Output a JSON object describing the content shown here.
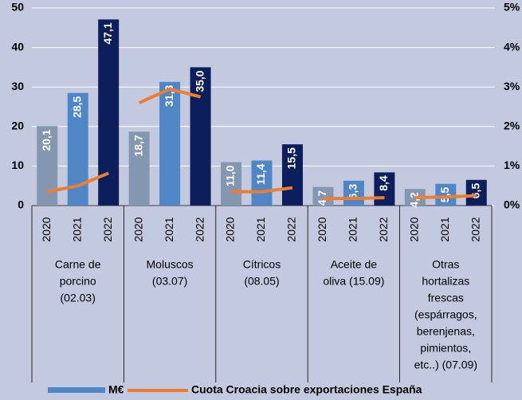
{
  "chart_data": {
    "type": "bar",
    "groups": [
      {
        "label": [
          "Carne de",
          "porcino",
          "(02.03)"
        ],
        "categories": [
          "2020",
          "2021",
          "2022"
        ]
      },
      {
        "label": [
          "Moluscos",
          "(03.07)"
        ],
        "categories": [
          "2020",
          "2021",
          "2022"
        ]
      },
      {
        "label": [
          "Cítricos",
          "(08.05)"
        ],
        "categories": [
          "2020",
          "2021",
          "2022"
        ]
      },
      {
        "label": [
          "Aceite de",
          "oliva  (15.09)"
        ],
        "categories": [
          "2020",
          "2021",
          "2022"
        ]
      },
      {
        "label": [
          "Otras",
          "hortalizas",
          "frescas",
          "(espárragos,",
          "berenjenas,",
          "pimientos,",
          "etc..) (07.09)"
        ],
        "categories": [
          "2020",
          "2021",
          "2022"
        ]
      }
    ],
    "series": [
      {
        "name": "M€",
        "type": "bar",
        "color": "#4f86c6",
        "year_colors": [
          "#8497b0",
          "#4f86c6",
          "#0c1f5c"
        ],
        "values": [
          20.1,
          28.5,
          47.1,
          18.7,
          31.3,
          35.0,
          11.0,
          11.4,
          15.5,
          4.7,
          6.3,
          8.4,
          4.2,
          5.5,
          6.5
        ],
        "value_labels": [
          "20,1",
          "28,5",
          "47,1",
          "18,7",
          "31,3",
          "35,0",
          "11,0",
          "11,4",
          "15,5",
          "4,7",
          "6,3",
          "8,4",
          "4,2",
          "5,5",
          "6,5"
        ]
      },
      {
        "name": "Cuota Croacia sobre exportaciones España",
        "type": "line",
        "axis": "y2",
        "color": "#ed7d31",
        "values": [
          0.35,
          0.5,
          0.82,
          2.6,
          2.95,
          2.75,
          0.35,
          0.35,
          0.45,
          0.18,
          0.18,
          0.2,
          0.2,
          0.22,
          0.25
        ]
      }
    ],
    "ylim": [
      0,
      50
    ],
    "yticks": [
      0,
      10,
      20,
      30,
      40,
      50
    ],
    "y2lim": [
      0,
      5
    ],
    "y2ticks": [
      {
        "value": 0,
        "label": "0%"
      },
      {
        "value": 1,
        "label": "1%"
      },
      {
        "value": 2,
        "label": "2%"
      },
      {
        "value": 3,
        "label": "3%"
      },
      {
        "value": 4,
        "label": "4%"
      },
      {
        "value": 5,
        "label": "5%"
      }
    ],
    "grid": true
  }
}
